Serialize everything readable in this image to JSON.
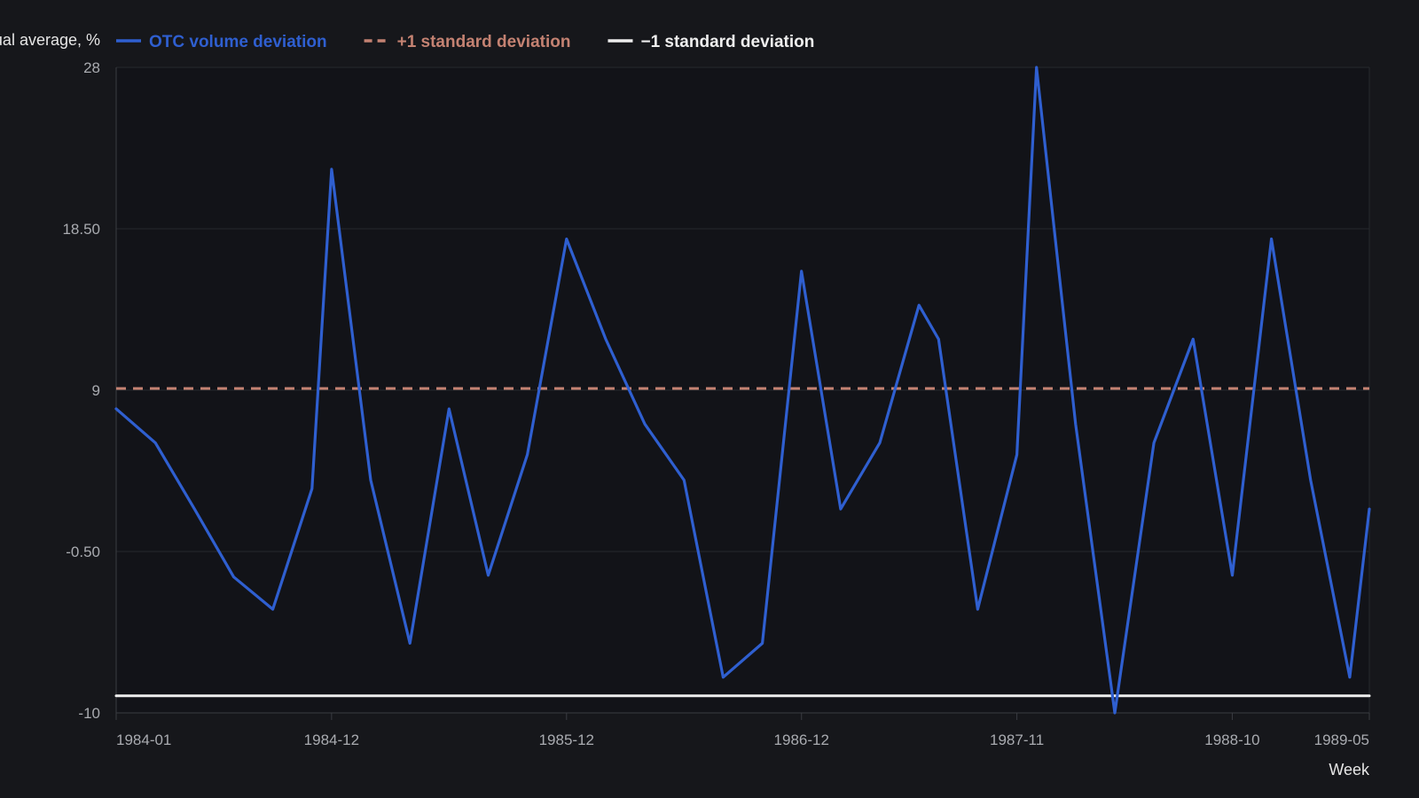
{
  "chart_data": {
    "type": "line",
    "ylabel": "Deviation from annual average, %",
    "xlabel": "Week",
    "ylim": [
      -10,
      28
    ],
    "yticks": [
      "28",
      "18.50",
      "9",
      "-0.50",
      "-10"
    ],
    "ytick_values": [
      28,
      18.5,
      9,
      -0.5,
      -10
    ],
    "x_range": [
      "1984-01",
      "1989-05"
    ],
    "xticks": [
      "1984-01",
      "1984-12",
      "1985-12",
      "1986-12",
      "1987-11",
      "1988-10",
      "1989-05"
    ],
    "grid": true,
    "legend_position": "top-left",
    "x": [
      "1984-01",
      "1984-03",
      "1984-05",
      "1984-07",
      "1984-09",
      "1984-11",
      "1984-12",
      "1985-02",
      "1985-04",
      "1985-06",
      "1985-08",
      "1985-10",
      "1985-12",
      "1986-02",
      "1986-04",
      "1986-06",
      "1986-08",
      "1986-10",
      "1986-12",
      "1987-02",
      "1987-04",
      "1987-06",
      "1987-07",
      "1987-09",
      "1987-11",
      "1987-12",
      "1988-02",
      "1988-04",
      "1988-06",
      "1988-08",
      "1988-10",
      "1988-12",
      "1989-02",
      "1989-04",
      "1989-05"
    ],
    "series": [
      {
        "name": "OTC volume deviation",
        "color": "#2f5fd0",
        "style": "solid",
        "values": [
          7.9,
          5.9,
          2.0,
          -2.0,
          -3.9,
          3.2,
          22.0,
          3.7,
          -5.9,
          7.9,
          -1.9,
          5.2,
          17.9,
          12.0,
          7.0,
          3.7,
          -7.9,
          -5.9,
          16.0,
          2.0,
          5.9,
          14.0,
          12.0,
          -3.9,
          5.2,
          28.0,
          7.0,
          -10.0,
          5.9,
          12.0,
          -1.9,
          17.9,
          3.7,
          -7.9,
          2.0
        ]
      },
      {
        "name": "+1 standard deviation",
        "color": "#c48272",
        "style": "dashed",
        "values": [
          9.1,
          9.1,
          9.1,
          9.1,
          9.1,
          9.1,
          9.1,
          9.1,
          9.1,
          9.1,
          9.1,
          9.1,
          9.1,
          9.1,
          9.1,
          9.1,
          9.1,
          9.1,
          9.1,
          9.1,
          9.1,
          9.1,
          9.1,
          9.1,
          9.1,
          9.1,
          9.1,
          9.1,
          9.1,
          9.1,
          9.1,
          9.1,
          9.1,
          9.1,
          9.1
        ]
      },
      {
        "name": "−1 standard deviation",
        "color": "#eeeeee",
        "style": "solid",
        "values": [
          -9.0,
          -9.0,
          -9.0,
          -9.0,
          -9.0,
          -9.0,
          -9.0,
          -9.0,
          -9.0,
          -9.0,
          -9.0,
          -9.0,
          -9.0,
          -9.0,
          -9.0,
          -9.0,
          -9.0,
          -9.0,
          -9.0,
          -9.0,
          -9.0,
          -9.0,
          -9.0,
          -9.0,
          -9.0,
          -9.0,
          -9.0,
          -9.0,
          -9.0,
          -9.0,
          -9.0,
          -9.0,
          -9.0,
          -9.0,
          -9.0
        ]
      }
    ]
  },
  "colors": {
    "background": "#16171b",
    "plot_background": "#121318",
    "grid": "#26282e",
    "axis": "#3a3c42",
    "tick_text": "#a9abb0",
    "label_text": "#e6e6e6"
  }
}
